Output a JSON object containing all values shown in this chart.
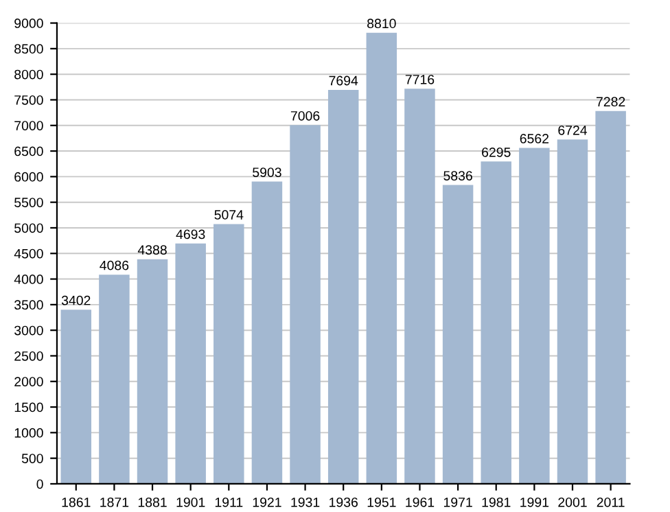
{
  "chart_data": {
    "type": "bar",
    "categories": [
      "1861",
      "1871",
      "1881",
      "1901",
      "1911",
      "1921",
      "1931",
      "1936",
      "1951",
      "1961",
      "1971",
      "1981",
      "1991",
      "2001",
      "2011"
    ],
    "values": [
      3402,
      4086,
      4388,
      4693,
      5074,
      5903,
      7006,
      7694,
      8810,
      7716,
      5836,
      6295,
      6562,
      6724,
      7282
    ],
    "color": "#a3b8d1",
    "ylim": [
      0,
      9000
    ],
    "yticks": [
      0,
      500,
      1000,
      1500,
      2000,
      2500,
      3000,
      3500,
      4000,
      4500,
      5000,
      5500,
      6000,
      6500,
      7000,
      7500,
      8000,
      8500,
      9000
    ],
    "grid": "y",
    "data_labels": true
  }
}
